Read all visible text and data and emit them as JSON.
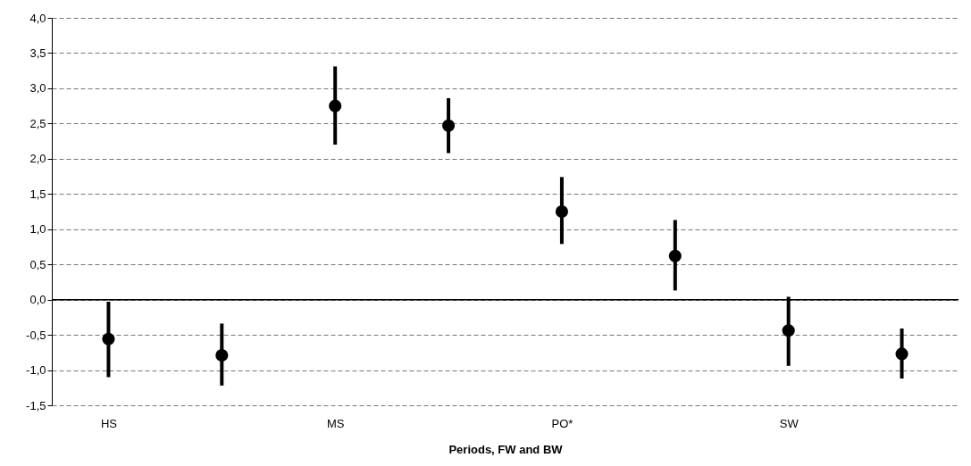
{
  "chart_data": {
    "type": "scatter",
    "xlabel": "Periods, FW and BW",
    "categories": [
      "HS",
      null,
      "MS",
      null,
      "PO*",
      null,
      "SW",
      null
    ],
    "values": [
      -0.56,
      -0.79,
      2.75,
      2.47,
      1.25,
      0.62,
      -0.44,
      -0.77
    ],
    "errors": [
      [
        -1.1,
        -0.03
      ],
      [
        -1.22,
        -0.34
      ],
      [
        2.2,
        3.31
      ],
      [
        2.08,
        2.86
      ],
      [
        0.79,
        1.74
      ],
      [
        0.13,
        1.13
      ],
      [
        -0.94,
        0.04
      ],
      [
        -1.12,
        -0.41
      ]
    ],
    "color": "#000000",
    "marker": "circle",
    "grid": "y",
    "ylim": [
      -1.5,
      4
    ],
    "yticks": [
      {
        "value": -1.5,
        "label": "-1,5"
      },
      {
        "value": -1,
        "label": "-1,0"
      },
      {
        "value": -0.5,
        "label": "-0,5"
      },
      {
        "value": 0,
        "label": "0,0"
      },
      {
        "value": 0.5,
        "label": "0,5"
      },
      {
        "value": 1,
        "label": "1,0"
      },
      {
        "value": 1.5,
        "label": "1,5"
      },
      {
        "value": 2,
        "label": "2,0"
      },
      {
        "value": 2.5,
        "label": "2,5"
      },
      {
        "value": 3,
        "label": "3,0"
      },
      {
        "value": 3.5,
        "label": "3,5"
      },
      {
        "value": 4,
        "label": "4,0"
      }
    ],
    "ref_lines": [
      {
        "axis": "y",
        "value": 0,
        "color": "#000000",
        "line_style": "solid"
      }
    ]
  }
}
